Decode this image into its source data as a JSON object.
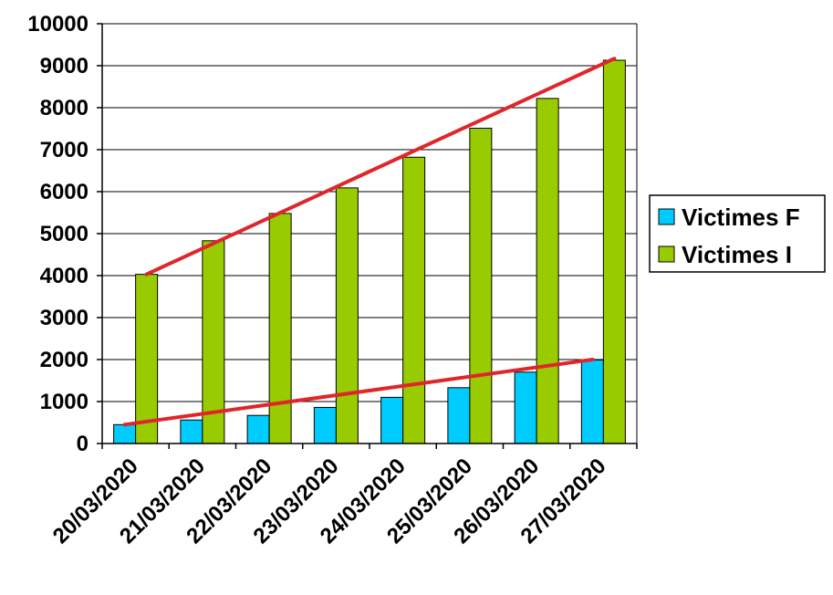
{
  "chart_data": {
    "type": "bar",
    "title": "",
    "xlabel": "",
    "ylabel": "",
    "categories": [
      "20/03/2020",
      "21/03/2020",
      "22/03/2020",
      "23/03/2020",
      "24/03/2020",
      "25/03/2020",
      "26/03/2020",
      "27/03/2020"
    ],
    "series": [
      {
        "name": "Victimes F",
        "color": "#00CCFF",
        "values": [
          450,
          560,
          670,
          860,
          1100,
          1330,
          1700,
          1990
        ]
      },
      {
        "name": "Victimes I",
        "color": "#99CC00",
        "values": [
          4030,
          4830,
          5480,
          6090,
          6820,
          7510,
          8220,
          9130
        ]
      }
    ],
    "trendlines": [
      {
        "series": "Victimes F",
        "color": "#E0262B",
        "from": {
          "x": "20/03/2020",
          "y": 450
        },
        "to": {
          "x": "27/03/2020",
          "y": 2000
        }
      },
      {
        "series": "Victimes I",
        "color": "#E0262B",
        "from": {
          "x": "20/03/2020",
          "y": 4030
        },
        "to": {
          "x": "27/03/2020",
          "y": 9170
        }
      }
    ],
    "ylim": [
      0,
      10000
    ],
    "yticks": [
      0,
      1000,
      2000,
      3000,
      4000,
      5000,
      6000,
      7000,
      8000,
      9000,
      10000
    ],
    "grid": true,
    "legend_position": "right"
  }
}
